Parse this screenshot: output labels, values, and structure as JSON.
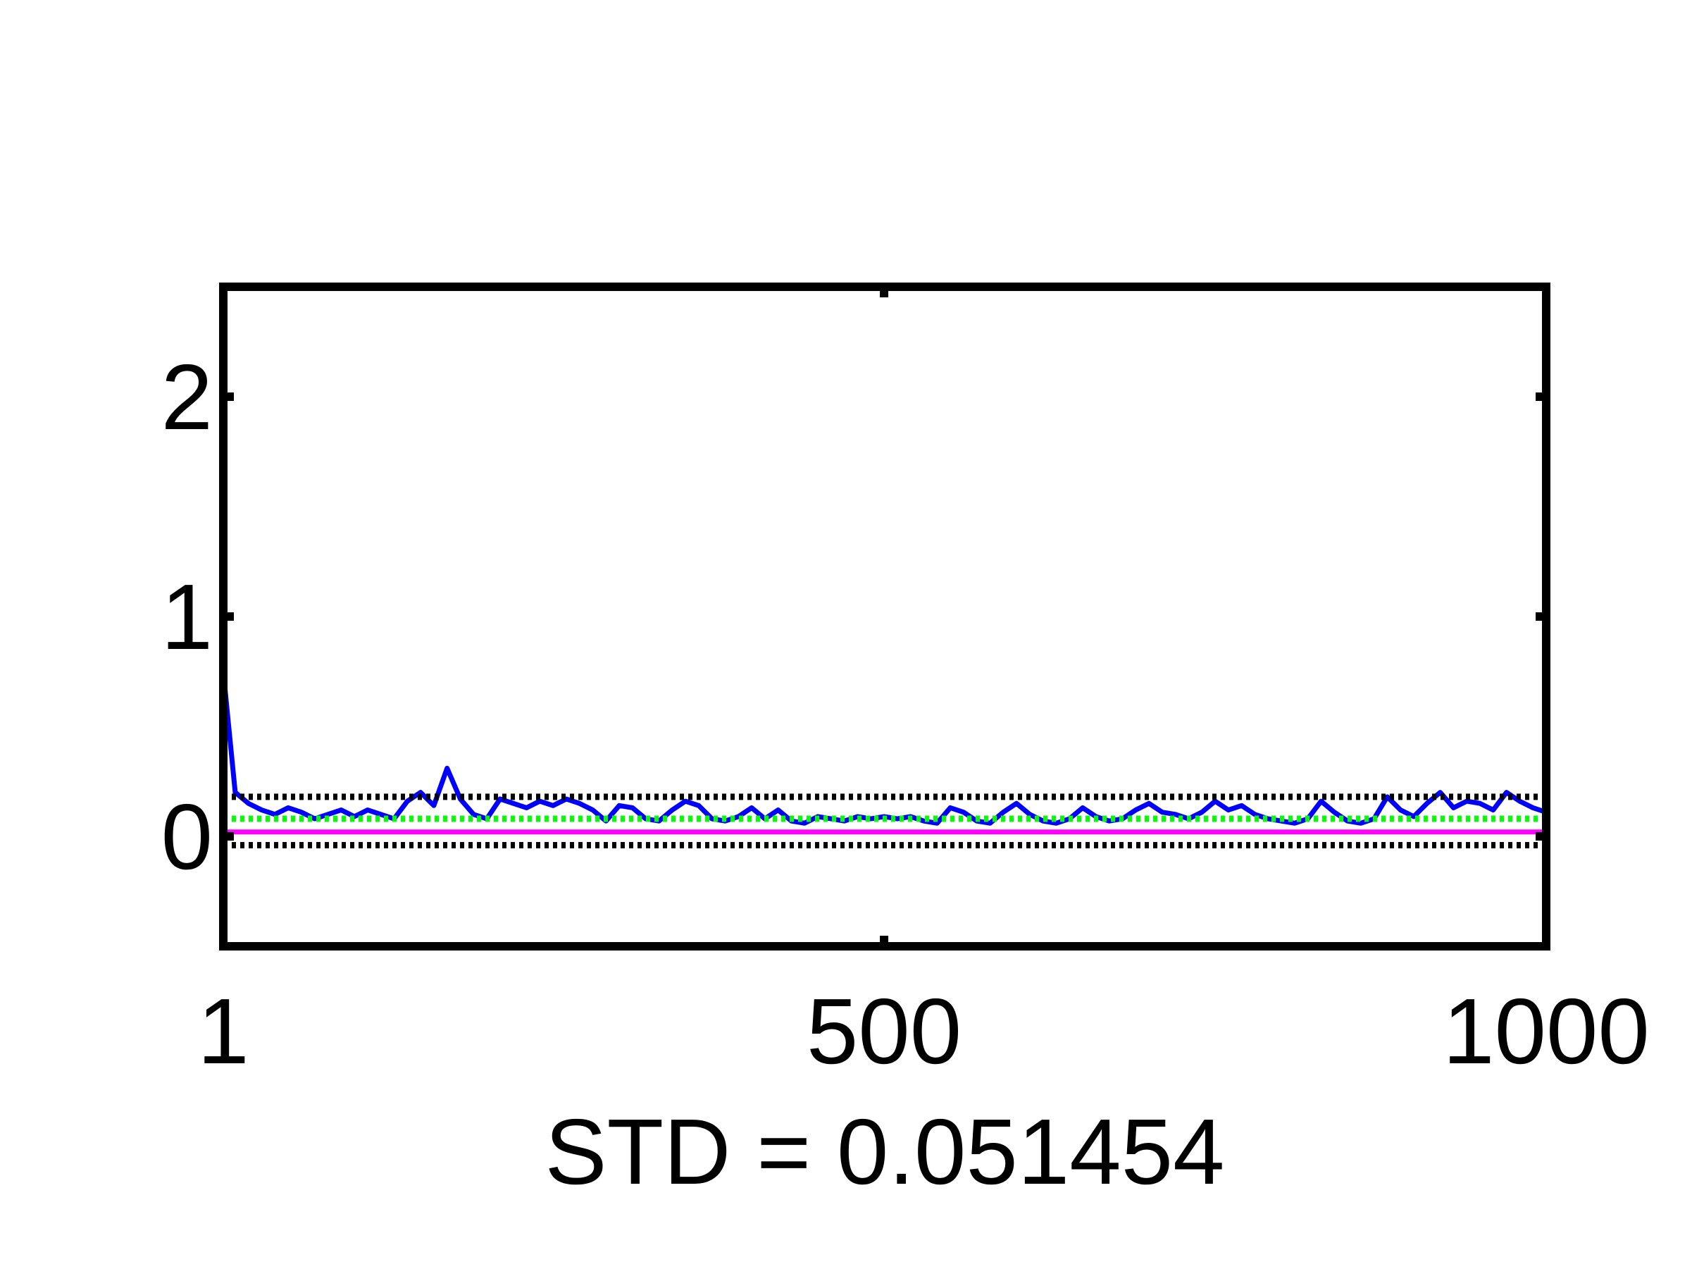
{
  "chart_data": {
    "type": "line",
    "xlabel": "STD = 0.051454",
    "xlim": [
      1,
      1000
    ],
    "ylim": [
      -0.5,
      2.5
    ],
    "xticks": [
      1,
      500,
      1000
    ],
    "yticks": [
      0,
      1,
      2
    ],
    "grid": false,
    "series": [
      {
        "color": "#0000ff",
        "style": "solid",
        "x": [
          1,
          10,
          20,
          30,
          40,
          50,
          60,
          70,
          80,
          90,
          100,
          110,
          120,
          130,
          140,
          150,
          160,
          170,
          180,
          190,
          200,
          210,
          220,
          230,
          240,
          250,
          260,
          270,
          280,
          290,
          300,
          310,
          320,
          330,
          340,
          350,
          360,
          370,
          380,
          390,
          400,
          410,
          420,
          430,
          440,
          450,
          460,
          470,
          480,
          490,
          500,
          510,
          520,
          530,
          540,
          550,
          560,
          570,
          580,
          590,
          600,
          610,
          620,
          630,
          640,
          650,
          660,
          670,
          680,
          690,
          700,
          710,
          720,
          730,
          740,
          750,
          760,
          770,
          780,
          790,
          800,
          810,
          820,
          830,
          840,
          850,
          860,
          870,
          880,
          890,
          900,
          910,
          920,
          930,
          940,
          950,
          960,
          970,
          980,
          990,
          1000
        ],
        "values": [
          0.75,
          0.2,
          0.15,
          0.12,
          0.1,
          0.13,
          0.11,
          0.08,
          0.1,
          0.12,
          0.09,
          0.12,
          0.1,
          0.08,
          0.16,
          0.2,
          0.14,
          0.31,
          0.17,
          0.1,
          0.08,
          0.17,
          0.15,
          0.13,
          0.16,
          0.14,
          0.17,
          0.15,
          0.12,
          0.07,
          0.14,
          0.13,
          0.08,
          0.07,
          0.12,
          0.16,
          0.14,
          0.08,
          0.07,
          0.09,
          0.13,
          0.08,
          0.12,
          0.07,
          0.06,
          0.09,
          0.08,
          0.07,
          0.09,
          0.08,
          0.09,
          0.08,
          0.09,
          0.07,
          0.06,
          0.13,
          0.11,
          0.07,
          0.06,
          0.11,
          0.15,
          0.1,
          0.07,
          0.06,
          0.08,
          0.13,
          0.09,
          0.07,
          0.08,
          0.12,
          0.15,
          0.11,
          0.1,
          0.08,
          0.11,
          0.16,
          0.12,
          0.14,
          0.1,
          0.08,
          0.07,
          0.06,
          0.08,
          0.16,
          0.11,
          0.07,
          0.06,
          0.08,
          0.18,
          0.12,
          0.09,
          0.15,
          0.2,
          0.13,
          0.16,
          0.15,
          0.12,
          0.2,
          0.16,
          0.13,
          0.11
        ]
      },
      {
        "color": "#ff00ff",
        "style": "solid",
        "x": [
          1,
          1000
        ],
        "values": [
          0.02,
          0.02
        ]
      },
      {
        "color": "#00ff00",
        "style": "dotted",
        "x": [
          1,
          1000
        ],
        "values": [
          0.08,
          0.08
        ]
      },
      {
        "color": "#000000",
        "style": "dotted",
        "x": [
          1,
          1000
        ],
        "values": [
          0.18,
          0.18
        ]
      },
      {
        "color": "#000000",
        "style": "dotted",
        "x": [
          1,
          1000
        ],
        "values": [
          -0.04,
          -0.04
        ]
      }
    ]
  }
}
